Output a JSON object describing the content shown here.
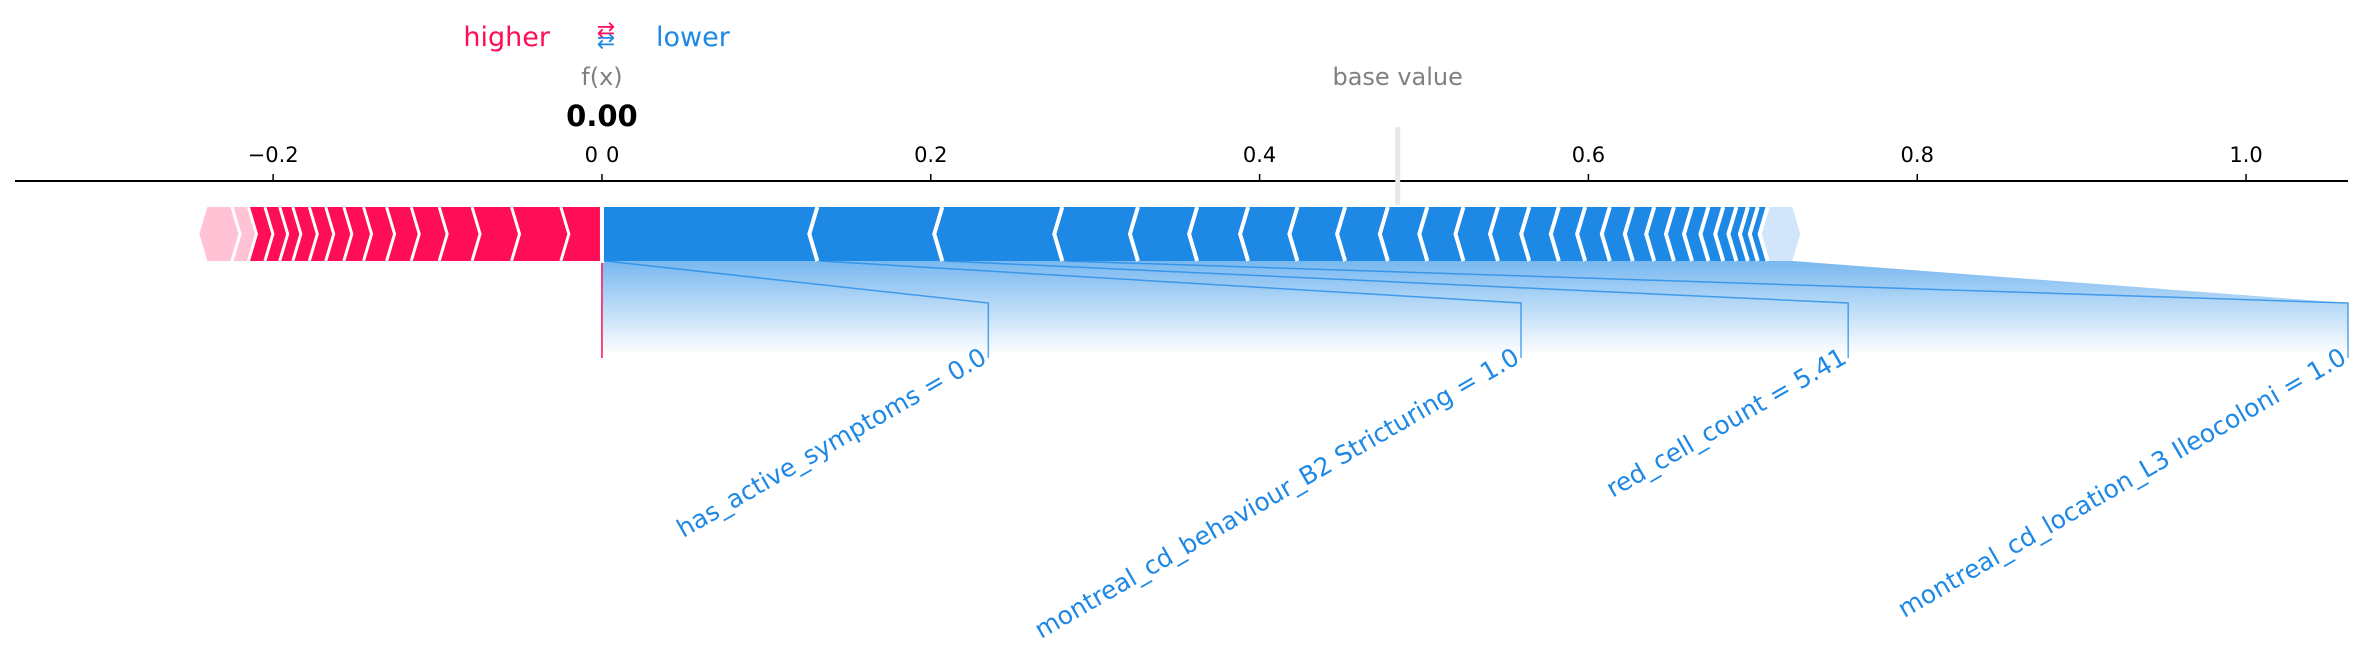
{
  "legend": {
    "higher_label": "higher",
    "lower_label": "lower",
    "arrows_icon": "swap-arrows-icon"
  },
  "header": {
    "fx_label": "f(x)",
    "fx_value": "0.00",
    "base_value_label": "base value"
  },
  "colors": {
    "positive": "#ff0d57",
    "negative": "#1e88e5",
    "positive_light": "#ffc3d5",
    "negative_light": "#d1e6fa",
    "divider": "#ffffff",
    "connector": "#1e88e5"
  },
  "chart_data": {
    "type": "force",
    "output_value": 0.0,
    "base_value": 0.484,
    "xlim": [
      -0.357,
      1.062
    ],
    "ticks": [
      -0.2,
      0.0,
      0.2,
      0.4,
      0.6,
      0.8,
      1.0
    ],
    "tick_labels": [
      "−0.2",
      "0",
      "0.2",
      "0.4",
      "0.6",
      "0.8",
      "1.0"
    ],
    "positive_extent": [
      -0.24,
      0.0
    ],
    "negative_extent": [
      0.0,
      0.724
    ],
    "positive_boundaries": [
      -0.24,
      -0.225,
      -0.215,
      -0.205,
      -0.196,
      -0.188,
      -0.178,
      -0.168,
      -0.157,
      -0.145,
      -0.131,
      -0.116,
      -0.099,
      -0.079,
      -0.055,
      -0.025,
      0.0
    ],
    "negative_boundaries": [
      0.0,
      0.131,
      0.207,
      0.28,
      0.326,
      0.362,
      0.393,
      0.423,
      0.452,
      0.478,
      0.502,
      0.524,
      0.545,
      0.564,
      0.582,
      0.598,
      0.613,
      0.627,
      0.64,
      0.652,
      0.663,
      0.673,
      0.682,
      0.69,
      0.697,
      0.703,
      0.709,
      0.724
    ],
    "features": [
      {
        "label": "has_active_symptoms = 0.0",
        "start": 0.0,
        "end": 0.131,
        "label_x": 0.235
      },
      {
        "label": "montreal_cd_behaviour_B2 Stricturing = 1.0",
        "start": 0.131,
        "end": 0.207,
        "label_x": 0.559
      },
      {
        "label": "red_cell_count = 5.41",
        "start": 0.207,
        "end": 0.28,
        "label_x": 0.758
      },
      {
        "label": "montreal_cd_location_L3 Ileocoloni = 1.0",
        "start": 0.28,
        "end": 0.326,
        "label_x": 1.062
      }
    ]
  }
}
